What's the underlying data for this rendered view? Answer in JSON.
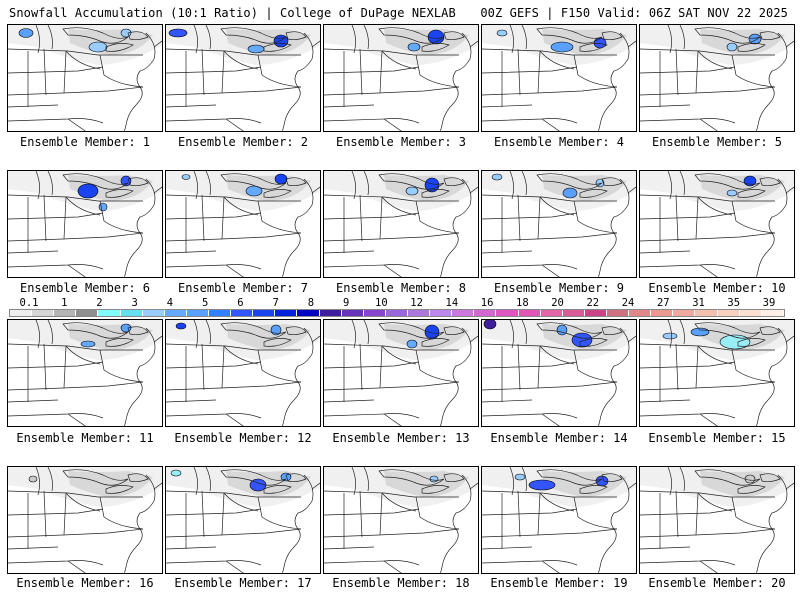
{
  "header": {
    "left": "Snowfall Accumulation (10:1 Ratio) | College of DuPage NEXLAB",
    "right": "00Z GEFS | F150 Valid: 06Z SAT NOV 22 2025"
  },
  "members": [
    {
      "label": "Ensemble Member: 1",
      "snow": [
        [
          18,
          8,
          14,
          9,
          "#5aa0ff"
        ],
        [
          90,
          22,
          18,
          10,
          "#99ccff"
        ],
        [
          118,
          8,
          10,
          8,
          "#99ccff"
        ]
      ]
    },
    {
      "label": "Ensemble Member: 2",
      "snow": [
        [
          12,
          8,
          18,
          8,
          "#3355ff"
        ],
        [
          115,
          16,
          14,
          12,
          "#1a44f0"
        ],
        [
          90,
          24,
          16,
          8,
          "#66aaff"
        ]
      ]
    },
    {
      "label": "Ensemble Member: 3",
      "snow": [
        [
          112,
          12,
          16,
          14,
          "#1a44f0"
        ],
        [
          90,
          22,
          12,
          8,
          "#66aaff"
        ]
      ]
    },
    {
      "label": "Ensemble Member: 4",
      "snow": [
        [
          80,
          22,
          22,
          10,
          "#5aa0ff"
        ],
        [
          118,
          18,
          12,
          10,
          "#3355ff"
        ],
        [
          20,
          8,
          10,
          6,
          "#99ccff"
        ]
      ]
    },
    {
      "label": "Ensemble Member: 5",
      "snow": [
        [
          115,
          14,
          12,
          10,
          "#5aa0ff"
        ],
        [
          92,
          22,
          10,
          8,
          "#99ccff"
        ]
      ]
    },
    {
      "label": "Ensemble Member: 6",
      "snow": [
        [
          80,
          20,
          20,
          14,
          "#1a44f0"
        ],
        [
          118,
          10,
          10,
          10,
          "#3355ff"
        ],
        [
          95,
          36,
          8,
          8,
          "#66aaff"
        ]
      ]
    },
    {
      "label": "Ensemble Member: 7",
      "snow": [
        [
          115,
          8,
          12,
          10,
          "#1a44f0"
        ],
        [
          88,
          20,
          16,
          10,
          "#66aaff"
        ],
        [
          20,
          6,
          8,
          5,
          "#99ccff"
        ]
      ]
    },
    {
      "label": "Ensemble Member: 8",
      "snow": [
        [
          108,
          14,
          14,
          14,
          "#1a44f0"
        ],
        [
          88,
          20,
          12,
          8,
          "#99ccff"
        ]
      ]
    },
    {
      "label": "Ensemble Member: 9",
      "snow": [
        [
          88,
          22,
          14,
          10,
          "#5aa0ff"
        ],
        [
          118,
          12,
          8,
          8,
          "#99ccff"
        ],
        [
          15,
          6,
          10,
          6,
          "#99ccff"
        ]
      ]
    },
    {
      "label": "Ensemble Member: 10",
      "snow": [
        [
          110,
          10,
          12,
          10,
          "#1a44f0"
        ],
        [
          92,
          22,
          10,
          6,
          "#99ccff"
        ]
      ]
    },
    {
      "label": "Ensemble Member: 11",
      "snow": [
        [
          80,
          24,
          14,
          6,
          "#66aaff"
        ],
        [
          118,
          8,
          10,
          8,
          "#5aa0ff"
        ]
      ]
    },
    {
      "label": "Ensemble Member: 12",
      "snow": [
        [
          15,
          6,
          10,
          6,
          "#1a44f0"
        ],
        [
          110,
          10,
          10,
          10,
          "#5aa0ff"
        ]
      ]
    },
    {
      "label": "Ensemble Member: 13",
      "snow": [
        [
          108,
          12,
          14,
          14,
          "#1a44f0"
        ],
        [
          88,
          24,
          10,
          8,
          "#66aaff"
        ]
      ]
    },
    {
      "label": "Ensemble Member: 14",
      "snow": [
        [
          8,
          4,
          12,
          10,
          "#3f1e9e"
        ],
        [
          100,
          20,
          20,
          14,
          "#3355ff"
        ],
        [
          80,
          10,
          10,
          10,
          "#5aa0ff"
        ]
      ]
    },
    {
      "label": "Ensemble Member: 15",
      "snow": [
        [
          60,
          12,
          18,
          8,
          "#5aa0ff"
        ],
        [
          95,
          22,
          30,
          14,
          "#99eef5"
        ],
        [
          30,
          16,
          14,
          6,
          "#99ccff"
        ]
      ]
    },
    {
      "label": "Ensemble Member: 16",
      "snow": [
        [
          25,
          12,
          8,
          6,
          "#cccccc"
        ]
      ]
    },
    {
      "label": "Ensemble Member: 17",
      "snow": [
        [
          92,
          18,
          16,
          12,
          "#3355ff"
        ],
        [
          120,
          10,
          10,
          8,
          "#5aa0ff"
        ],
        [
          10,
          6,
          10,
          6,
          "#99eef5"
        ]
      ]
    },
    {
      "label": "Ensemble Member: 18",
      "snow": [
        [
          110,
          12,
          8,
          6,
          "#99ccff"
        ]
      ]
    },
    {
      "label": "Ensemble Member: 19",
      "snow": [
        [
          60,
          18,
          26,
          10,
          "#3355ff"
        ],
        [
          120,
          14,
          12,
          10,
          "#3355ff"
        ],
        [
          38,
          10,
          10,
          6,
          "#99ccff"
        ]
      ]
    },
    {
      "label": "Ensemble Member: 20",
      "snow": [
        [
          110,
          12,
          10,
          8,
          "#cccccc"
        ]
      ]
    }
  ],
  "color_scale": {
    "labels": [
      "0.1",
      "1",
      "2",
      "3",
      "4",
      "5",
      "6",
      "7",
      "8",
      "9",
      "10",
      "12",
      "14",
      "16",
      "18",
      "20",
      "22",
      "24",
      "27",
      "31",
      "35",
      "39"
    ],
    "colors": [
      "#eeeeee",
      "#d6d6d6",
      "#b5b5b5",
      "#8f8f8f",
      "#80ffff",
      "#66e0f0",
      "#99ccff",
      "#66aaff",
      "#5aa0ff",
      "#3380ff",
      "#3355ff",
      "#1a44f0",
      "#0022dd",
      "#0000c0",
      "#3f1e9e",
      "#6633bb",
      "#8844cc",
      "#9966dd",
      "#aa77dd",
      "#bb88ee",
      "#cc77dd",
      "#d466d0",
      "#dd55c0",
      "#e055b5",
      "#e066a8",
      "#d85a96",
      "#cc4488",
      "#d07080",
      "#e08888",
      "#e89a90",
      "#f0a8a0",
      "#f4c0b0",
      "#f8d0c0",
      "#fbe0d2",
      "#fdeee6"
    ]
  }
}
